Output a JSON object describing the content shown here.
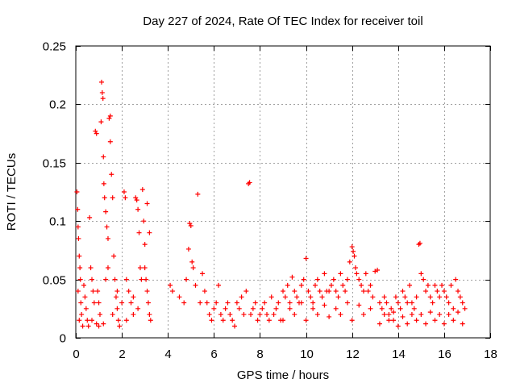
{
  "chart_data": {
    "type": "scatter",
    "title": "Day 227 of 2024, Rate Of TEC Index for receiver toil",
    "xlabel": "GPS time / hours",
    "ylabel": "ROTI / TECUs",
    "xlim": [
      0,
      18
    ],
    "ylim": [
      0,
      0.25
    ],
    "x_ticks": [
      0,
      2,
      4,
      6,
      8,
      10,
      12,
      14,
      16,
      18
    ],
    "y_ticks": [
      0,
      0.05,
      0.1,
      0.15,
      0.2,
      0.25
    ],
    "x_tick_labels": [
      "0",
      "2",
      "4",
      "6",
      "8",
      "10",
      "12",
      "14",
      "16",
      "18"
    ],
    "y_tick_labels": [
      "0",
      "0.05",
      "0.1",
      "0.15",
      "0.2",
      "0.25"
    ],
    "grid": true,
    "marker": "+",
    "color": "#ff0000",
    "series": [
      {
        "name": "ROTI",
        "points": [
          [
            0.05,
            0.125
          ],
          [
            0.08,
            0.11
          ],
          [
            0.1,
            0.095
          ],
          [
            0.12,
            0.085
          ],
          [
            0.15,
            0.07
          ],
          [
            0.18,
            0.06
          ],
          [
            0.2,
            0.05
          ],
          [
            0.22,
            0.03
          ],
          [
            0.25,
            0.02
          ],
          [
            0.1,
            0.04
          ],
          [
            0.15,
            0.015
          ],
          [
            0.3,
            0.01
          ],
          [
            0.35,
            0.045
          ],
          [
            0.4,
            0.035
          ],
          [
            0.45,
            0.025
          ],
          [
            0.5,
            0.015
          ],
          [
            0.55,
            0.01
          ],
          [
            0.6,
            0.103
          ],
          [
            0.65,
            0.06
          ],
          [
            0.7,
            0.05
          ],
          [
            0.75,
            0.04
          ],
          [
            0.8,
            0.03
          ],
          [
            0.85,
            0.177
          ],
          [
            0.9,
            0.175
          ],
          [
            0.95,
            0.04
          ],
          [
            1.0,
            0.03
          ],
          [
            1.05,
            0.02
          ],
          [
            1.1,
            0.185
          ],
          [
            1.12,
            0.219
          ],
          [
            1.15,
            0.21
          ],
          [
            1.18,
            0.205
          ],
          [
            1.2,
            0.155
          ],
          [
            1.22,
            0.132
          ],
          [
            1.25,
            0.12
          ],
          [
            1.3,
            0.108
          ],
          [
            1.35,
            0.095
          ],
          [
            1.4,
            0.085
          ],
          [
            1.45,
            0.188
          ],
          [
            1.5,
            0.19
          ],
          [
            1.5,
            0.168
          ],
          [
            1.55,
            0.14
          ],
          [
            1.6,
            0.12
          ],
          [
            1.65,
            0.07
          ],
          [
            1.7,
            0.05
          ],
          [
            1.75,
            0.035
          ],
          [
            1.8,
            0.025
          ],
          [
            1.85,
            0.015
          ],
          [
            1.9,
            0.01
          ],
          [
            0.7,
            0.015
          ],
          [
            0.9,
            0.012
          ],
          [
            1.0,
            0.01
          ],
          [
            1.2,
            0.012
          ],
          [
            1.3,
            0.05
          ],
          [
            1.4,
            0.06
          ],
          [
            1.6,
            0.02
          ],
          [
            1.8,
            0.04
          ],
          [
            2.0,
            0.03
          ],
          [
            2.1,
            0.125
          ],
          [
            2.15,
            0.12
          ],
          [
            2.2,
            0.05
          ],
          [
            2.3,
            0.04
          ],
          [
            2.4,
            0.03
          ],
          [
            2.5,
            0.02
          ],
          [
            2.6,
            0.12
          ],
          [
            2.65,
            0.118
          ],
          [
            2.7,
            0.11
          ],
          [
            2.75,
            0.09
          ],
          [
            2.8,
            0.06
          ],
          [
            2.85,
            0.05
          ],
          [
            2.9,
            0.127
          ],
          [
            2.95,
            0.1
          ],
          [
            3.0,
            0.08
          ],
          [
            3.05,
            0.05
          ],
          [
            3.1,
            0.04
          ],
          [
            3.15,
            0.03
          ],
          [
            3.2,
            0.02
          ],
          [
            3.25,
            0.015
          ],
          [
            2.2,
            0.015
          ],
          [
            2.5,
            0.035
          ],
          [
            2.7,
            0.025
          ],
          [
            3.0,
            0.06
          ],
          [
            3.1,
            0.115
          ],
          [
            3.2,
            0.09
          ],
          [
            4.1,
            0.045
          ],
          [
            4.2,
            0.04
          ],
          [
            4.5,
            0.035
          ],
          [
            4.7,
            0.03
          ],
          [
            4.8,
            0.05
          ],
          [
            4.9,
            0.076
          ],
          [
            4.95,
            0.098
          ],
          [
            5.0,
            0.096
          ],
          [
            5.05,
            0.065
          ],
          [
            5.1,
            0.06
          ],
          [
            5.2,
            0.045
          ],
          [
            5.3,
            0.123
          ],
          [
            5.4,
            0.03
          ],
          [
            5.5,
            0.055
          ],
          [
            5.6,
            0.04
          ],
          [
            5.7,
            0.03
          ],
          [
            5.8,
            0.02
          ],
          [
            5.9,
            0.015
          ],
          [
            6.0,
            0.025
          ],
          [
            6.1,
            0.03
          ],
          [
            6.2,
            0.045
          ],
          [
            6.3,
            0.02
          ],
          [
            6.4,
            0.015
          ],
          [
            6.5,
            0.025
          ],
          [
            6.6,
            0.03
          ],
          [
            6.7,
            0.02
          ],
          [
            6.8,
            0.015
          ],
          [
            6.9,
            0.01
          ],
          [
            7.0,
            0.03
          ],
          [
            7.1,
            0.025
          ],
          [
            7.2,
            0.035
          ],
          [
            7.3,
            0.02
          ],
          [
            7.4,
            0.04
          ],
          [
            7.5,
            0.132
          ],
          [
            7.55,
            0.133
          ],
          [
            7.6,
            0.02
          ],
          [
            7.7,
            0.025
          ],
          [
            7.8,
            0.03
          ],
          [
            7.9,
            0.015
          ],
          [
            8.0,
            0.02
          ],
          [
            8.1,
            0.025
          ],
          [
            8.2,
            0.03
          ],
          [
            8.3,
            0.02
          ],
          [
            8.4,
            0.015
          ],
          [
            8.5,
            0.035
          ],
          [
            8.6,
            0.02
          ],
          [
            8.7,
            0.025
          ],
          [
            8.8,
            0.03
          ],
          [
            8.9,
            0.015
          ],
          [
            9.0,
            0.04
          ],
          [
            9.1,
            0.035
          ],
          [
            9.2,
            0.045
          ],
          [
            9.3,
            0.03
          ],
          [
            9.4,
            0.052
          ],
          [
            9.5,
            0.04
          ],
          [
            9.6,
            0.035
          ],
          [
            9.7,
            0.03
          ],
          [
            9.8,
            0.045
          ],
          [
            9.9,
            0.05
          ],
          [
            10.0,
            0.068
          ],
          [
            10.1,
            0.04
          ],
          [
            10.2,
            0.035
          ],
          [
            10.3,
            0.03
          ],
          [
            10.4,
            0.045
          ],
          [
            10.5,
            0.05
          ],
          [
            10.6,
            0.04
          ],
          [
            10.7,
            0.035
          ],
          [
            10.8,
            0.055
          ],
          [
            10.9,
            0.04
          ],
          [
            11.0,
            0.04
          ],
          [
            11.1,
            0.045
          ],
          [
            11.2,
            0.05
          ],
          [
            11.3,
            0.04
          ],
          [
            11.4,
            0.035
          ],
          [
            11.5,
            0.055
          ],
          [
            11.6,
            0.045
          ],
          [
            11.7,
            0.04
          ],
          [
            11.8,
            0.05
          ],
          [
            11.9,
            0.065
          ],
          [
            12.0,
            0.078
          ],
          [
            12.05,
            0.074
          ],
          [
            12.1,
            0.07
          ],
          [
            12.15,
            0.06
          ],
          [
            12.2,
            0.055
          ],
          [
            12.3,
            0.05
          ],
          [
            12.4,
            0.045
          ],
          [
            12.5,
            0.04
          ],
          [
            12.6,
            0.055
          ],
          [
            12.7,
            0.04
          ],
          [
            12.8,
            0.045
          ],
          [
            12.9,
            0.035
          ],
          [
            9.0,
            0.015
          ],
          [
            9.5,
            0.02
          ],
          [
            10.0,
            0.015
          ],
          [
            10.5,
            0.02
          ],
          [
            11.0,
            0.018
          ],
          [
            11.5,
            0.02
          ],
          [
            12.0,
            0.015
          ],
          [
            12.5,
            0.02
          ],
          [
            9.3,
            0.025
          ],
          [
            9.8,
            0.03
          ],
          [
            10.3,
            0.025
          ],
          [
            10.8,
            0.028
          ],
          [
            11.3,
            0.025
          ],
          [
            11.8,
            0.03
          ],
          [
            12.3,
            0.028
          ],
          [
            12.8,
            0.025
          ],
          [
            13.0,
            0.057
          ],
          [
            13.1,
            0.058
          ],
          [
            13.2,
            0.03
          ],
          [
            13.3,
            0.025
          ],
          [
            13.4,
            0.035
          ],
          [
            13.5,
            0.03
          ],
          [
            13.6,
            0.02
          ],
          [
            13.7,
            0.025
          ],
          [
            13.8,
            0.015
          ],
          [
            13.9,
            0.035
          ],
          [
            14.0,
            0.03
          ],
          [
            14.1,
            0.025
          ],
          [
            14.2,
            0.04
          ],
          [
            14.3,
            0.035
          ],
          [
            14.4,
            0.03
          ],
          [
            14.5,
            0.045
          ],
          [
            14.6,
            0.03
          ],
          [
            14.7,
            0.025
          ],
          [
            14.8,
            0.035
          ],
          [
            14.9,
            0.08
          ],
          [
            14.95,
            0.081
          ],
          [
            15.0,
            0.055
          ],
          [
            15.1,
            0.05
          ],
          [
            15.2,
            0.04
          ],
          [
            15.3,
            0.045
          ],
          [
            15.4,
            0.035
          ],
          [
            15.5,
            0.03
          ],
          [
            15.6,
            0.045
          ],
          [
            15.7,
            0.04
          ],
          [
            15.8,
            0.035
          ],
          [
            15.9,
            0.045
          ],
          [
            16.0,
            0.04
          ],
          [
            16.1,
            0.035
          ],
          [
            16.2,
            0.03
          ],
          [
            16.3,
            0.045
          ],
          [
            16.4,
            0.025
          ],
          [
            16.5,
            0.05
          ],
          [
            16.6,
            0.04
          ],
          [
            16.7,
            0.035
          ],
          [
            16.8,
            0.03
          ],
          [
            16.9,
            0.025
          ],
          [
            13.2,
            0.012
          ],
          [
            13.6,
            0.015
          ],
          [
            14.0,
            0.01
          ],
          [
            14.4,
            0.012
          ],
          [
            14.8,
            0.015
          ],
          [
            15.2,
            0.012
          ],
          [
            15.6,
            0.015
          ],
          [
            16.0,
            0.012
          ],
          [
            16.4,
            0.015
          ],
          [
            16.8,
            0.012
          ],
          [
            13.4,
            0.02
          ],
          [
            13.8,
            0.022
          ],
          [
            14.2,
            0.018
          ],
          [
            14.6,
            0.02
          ],
          [
            15.0,
            0.02
          ],
          [
            15.4,
            0.022
          ],
          [
            15.8,
            0.02
          ],
          [
            16.2,
            0.02
          ],
          [
            16.6,
            0.022
          ]
        ]
      }
    ]
  }
}
